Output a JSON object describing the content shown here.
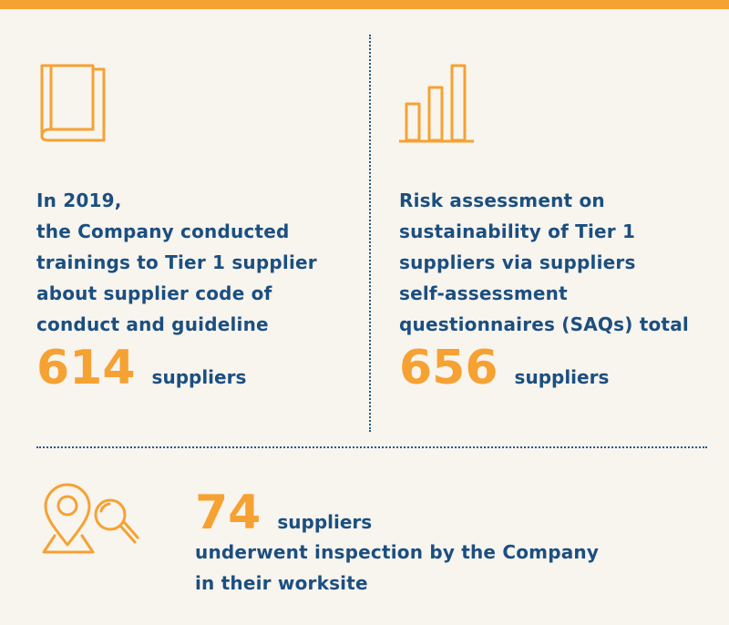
{
  "colors": {
    "accent": "#f5a233",
    "text": "#1b4f80",
    "background": "#f8f4ee"
  },
  "icons": {
    "left": "book-icon",
    "right": "bar-chart-icon",
    "bottom": "location-search-icon"
  },
  "left": {
    "lines": [
      "In 2019,",
      "the Company conducted",
      "trainings to Tier 1 supplier",
      "about supplier code of",
      "conduct and guideline"
    ],
    "number": "614",
    "unit": "suppliers"
  },
  "right": {
    "lines": [
      "Risk assessment on",
      "sustainability of Tier 1",
      "suppliers via suppliers",
      "self-assessment",
      "questionnaires (SAQs) total"
    ],
    "number": "656",
    "unit": "suppliers"
  },
  "bottom": {
    "number": "74",
    "unit": "suppliers",
    "lines": [
      "underwent inspection by the Company",
      "in their worksite"
    ]
  }
}
